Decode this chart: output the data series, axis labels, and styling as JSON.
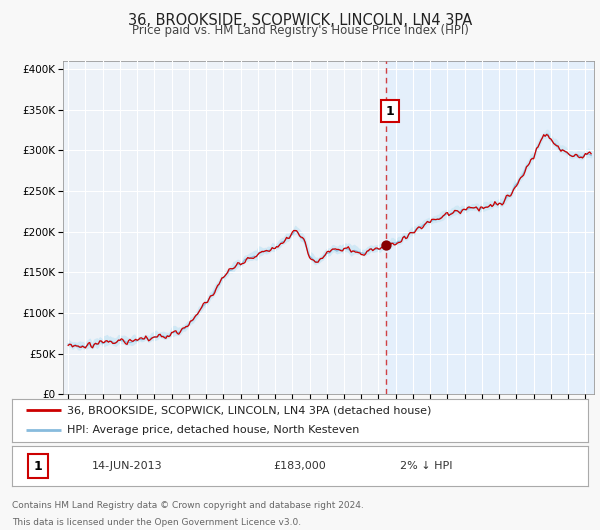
{
  "title": "36, BROOKSIDE, SCOPWICK, LINCOLN, LN4 3PA",
  "subtitle": "Price paid vs. HM Land Registry's House Price Index (HPI)",
  "legend_line1": "36, BROOKSIDE, SCOPWICK, LINCOLN, LN4 3PA (detached house)",
  "legend_line2": "HPI: Average price, detached house, North Kesteven",
  "annotation_label": "1",
  "annotation_date": "14-JUN-2013",
  "annotation_price": "£183,000",
  "annotation_hpi": "2% ↓ HPI",
  "footnote1": "Contains HM Land Registry data © Crown copyright and database right 2024.",
  "footnote2": "This data is licensed under the Open Government Licence v3.0.",
  "sale_date_x": 2013.46,
  "sale_price_y": 183000,
  "ylim": [
    0,
    410000
  ],
  "xlim_start": 1994.7,
  "xlim_end": 2025.5,
  "yticks": [
    0,
    50000,
    100000,
    150000,
    200000,
    250000,
    300000,
    350000,
    400000
  ],
  "ytick_labels": [
    "£0",
    "£50K",
    "£100K",
    "£150K",
    "£200K",
    "£250K",
    "£300K",
    "£350K",
    "£400K"
  ],
  "xticks": [
    1995,
    1996,
    1997,
    1998,
    1999,
    2000,
    2001,
    2002,
    2003,
    2004,
    2005,
    2006,
    2007,
    2008,
    2009,
    2010,
    2011,
    2012,
    2013,
    2014,
    2015,
    2016,
    2017,
    2018,
    2019,
    2020,
    2021,
    2022,
    2023,
    2024,
    2025
  ],
  "red_line_color": "#cc0000",
  "blue_line_color": "#88bbdd",
  "blue_fill_color": "#d0e8f5",
  "fig_bg_color": "#f8f8f8",
  "plot_bg_color": "#edf2f8",
  "right_bg_color": "#ddeeff",
  "grid_color": "#ffffff",
  "sale_dot_color": "#880000",
  "vline_color": "#cc2222",
  "annotation_box_edge": "#cc0000",
  "title_fontsize": 10.5,
  "subtitle_fontsize": 8.5,
  "axis_fontsize": 7.5,
  "legend_fontsize": 8,
  "annot_fontsize": 8,
  "footnote_fontsize": 6.5
}
